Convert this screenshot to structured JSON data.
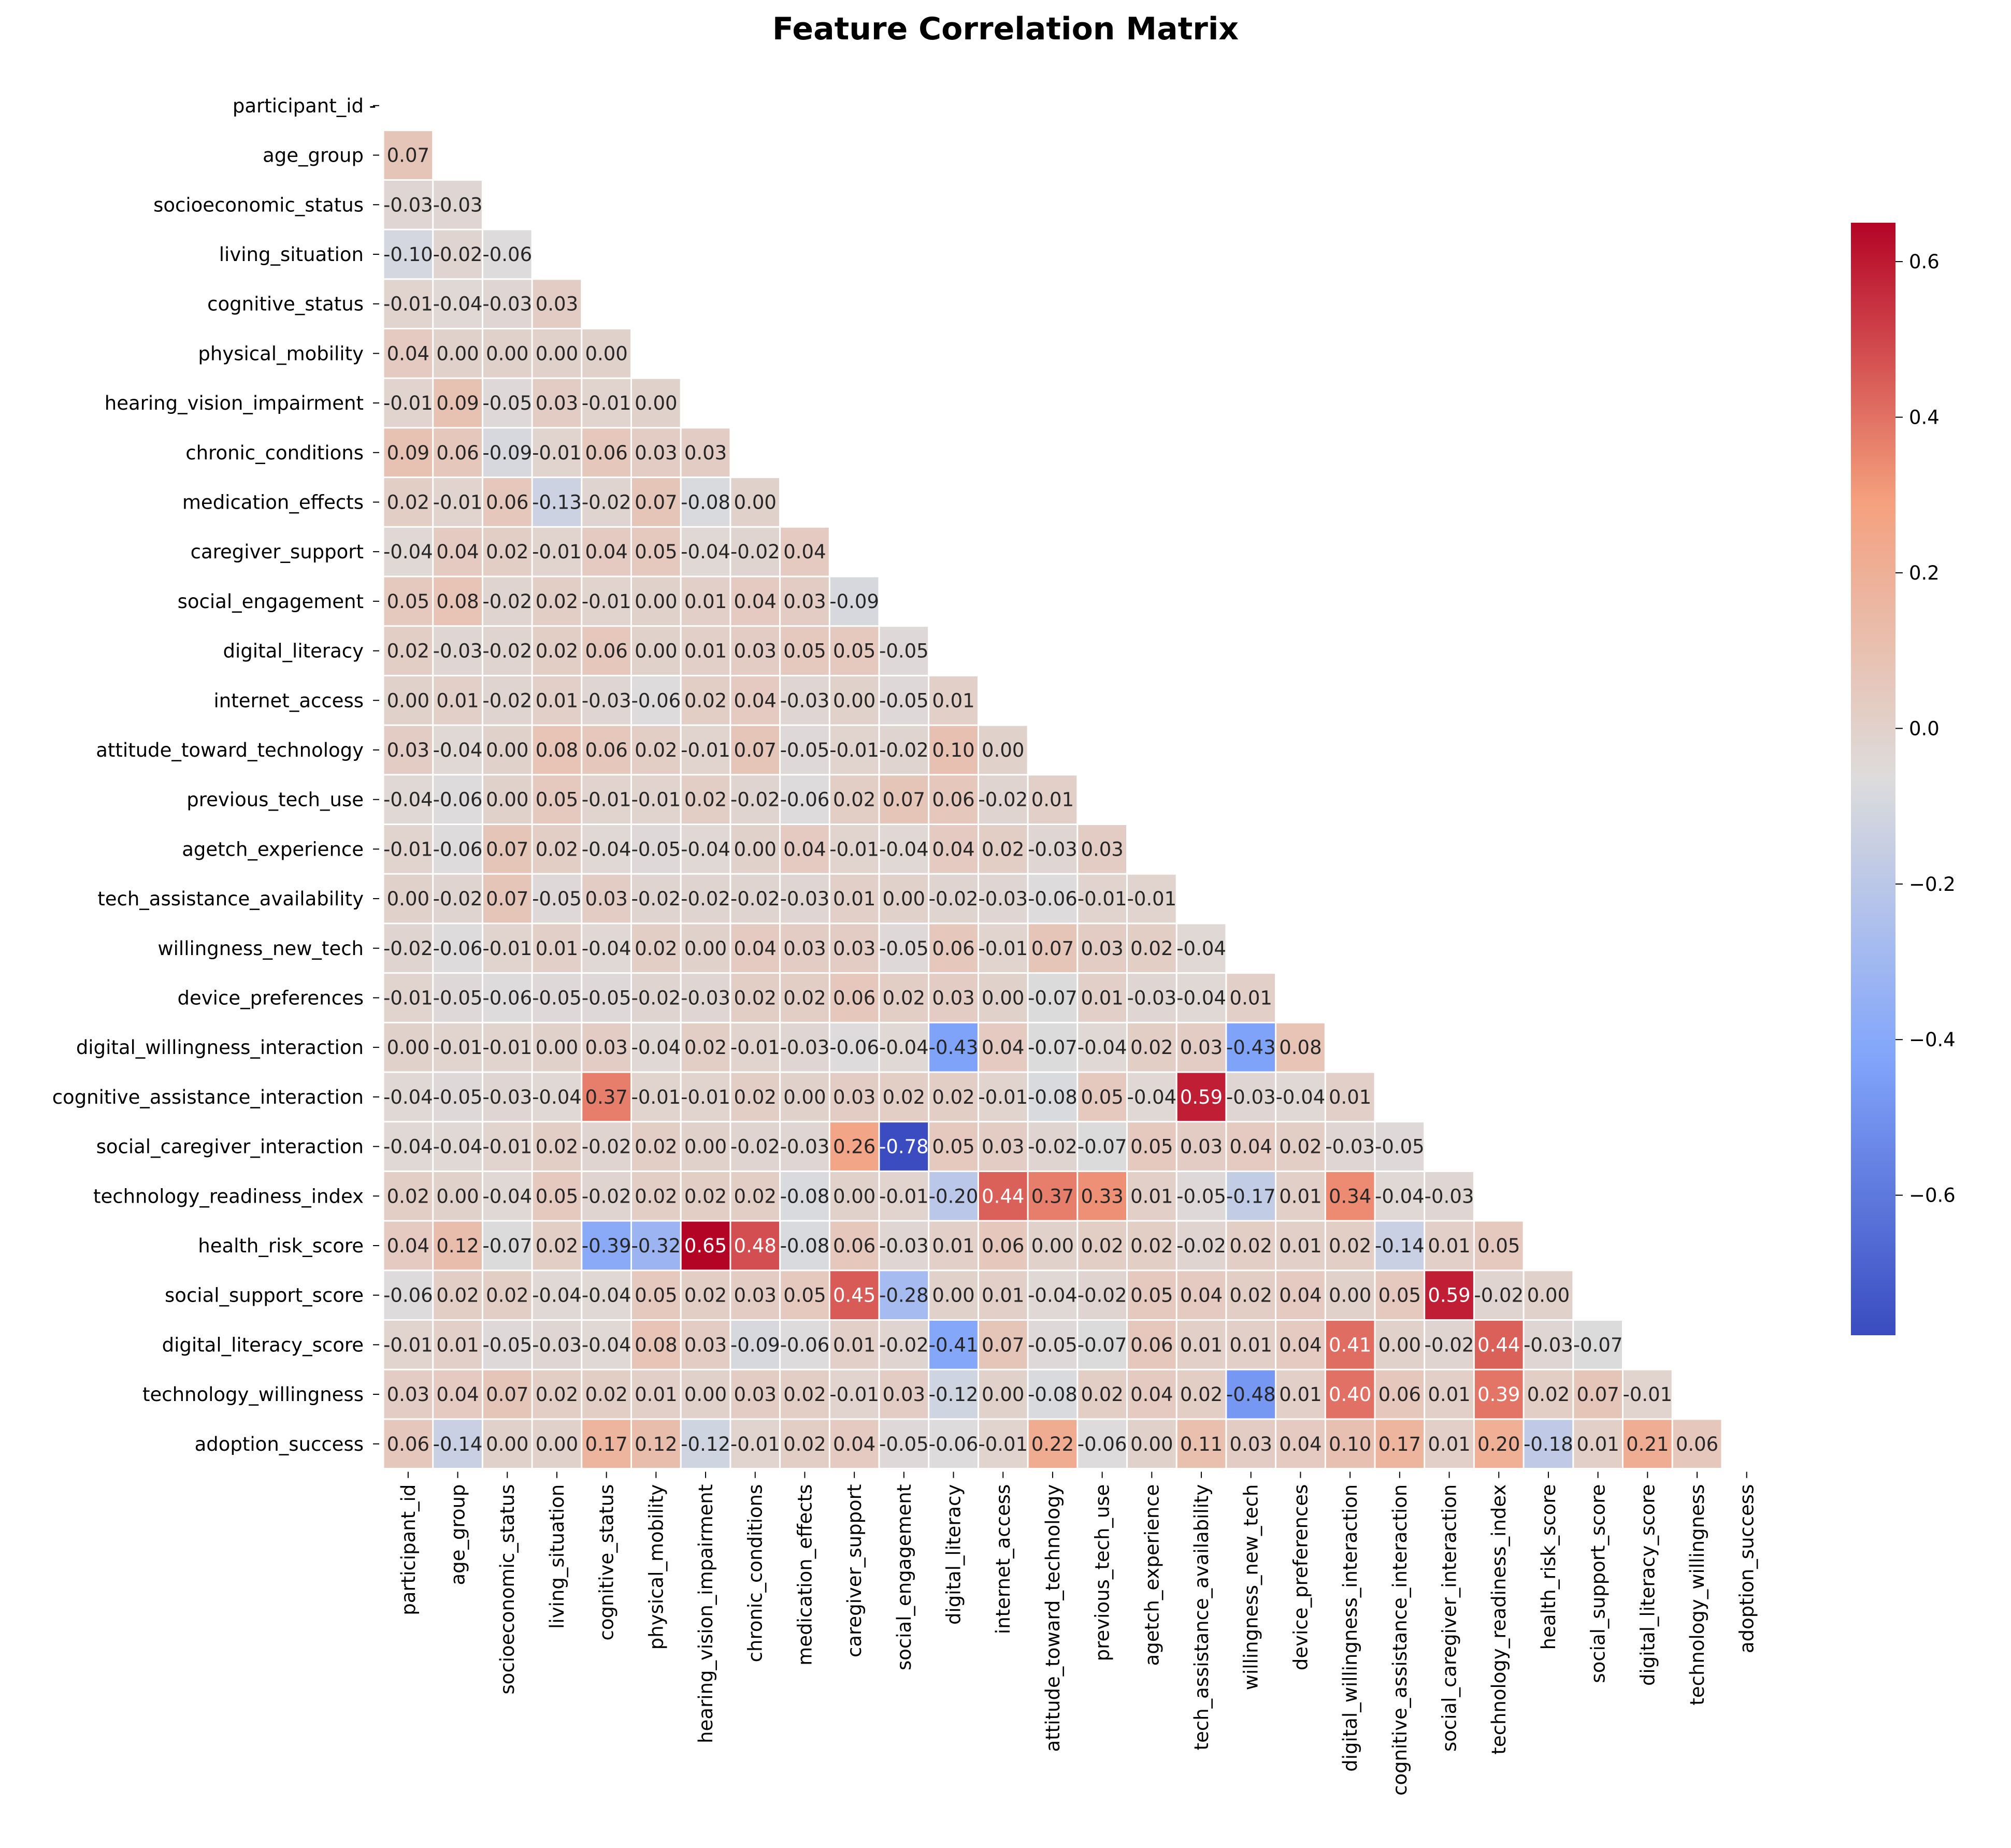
{
  "chart_data": {
    "type": "heatmap",
    "title": "Feature Correlation Matrix",
    "xlabel": "",
    "ylabel": "",
    "features": [
      "participant_id",
      "age_group",
      "socioeconomic_status",
      "living_situation",
      "cognitive_status",
      "physical_mobility",
      "hearing_vision_impairment",
      "chronic_conditions",
      "medication_effects",
      "caregiver_support",
      "social_engagement",
      "digital_literacy",
      "internet_access",
      "attitude_toward_technology",
      "previous_tech_use",
      "agetch_experience",
      "tech_assistance_availability",
      "willingness_new_tech",
      "device_preferences",
      "digital_willingness_interaction",
      "cognitive_assistance_interaction",
      "social_caregiver_interaction",
      "technology_readiness_index",
      "health_risk_score",
      "social_support_score",
      "digital_literacy_score",
      "technology_willingness",
      "adoption_success"
    ],
    "lower_triangle_values": [
      [],
      [
        0.07
      ],
      [
        -0.03,
        -0.03
      ],
      [
        -0.1,
        -0.02,
        -0.06
      ],
      [
        -0.01,
        -0.04,
        -0.03,
        0.03
      ],
      [
        0.04,
        -0.0,
        -0.0,
        0.0,
        0.0
      ],
      [
        -0.01,
        0.09,
        -0.05,
        0.03,
        -0.01,
        -0.0
      ],
      [
        0.09,
        0.06,
        -0.09,
        -0.01,
        0.06,
        0.03,
        0.03
      ],
      [
        0.02,
        -0.01,
        0.06,
        -0.13,
        -0.02,
        0.07,
        -0.08,
        0.0
      ],
      [
        -0.04,
        0.04,
        0.02,
        -0.01,
        0.04,
        0.05,
        -0.04,
        -0.02,
        0.04
      ],
      [
        0.05,
        0.08,
        -0.02,
        0.02,
        -0.01,
        0.0,
        0.01,
        0.04,
        0.03,
        -0.09
      ],
      [
        0.02,
        -0.03,
        -0.02,
        0.02,
        0.06,
        -0.0,
        0.01,
        0.03,
        0.05,
        0.05,
        -0.05
      ],
      [
        0.0,
        0.01,
        -0.02,
        0.01,
        -0.03,
        -0.06,
        0.02,
        0.04,
        -0.03,
        -0.0,
        -0.05,
        0.01
      ],
      [
        0.03,
        -0.04,
        -0.0,
        0.08,
        0.06,
        0.02,
        -0.01,
        0.07,
        -0.05,
        -0.01,
        -0.02,
        0.1,
        -0.0
      ],
      [
        -0.04,
        -0.06,
        -0.0,
        0.05,
        -0.01,
        -0.01,
        0.02,
        -0.02,
        -0.06,
        0.02,
        0.07,
        0.06,
        -0.02,
        0.01
      ],
      [
        -0.01,
        -0.06,
        0.07,
        0.02,
        -0.04,
        -0.05,
        -0.04,
        0.0,
        0.04,
        -0.01,
        -0.04,
        0.04,
        0.02,
        -0.03,
        0.03
      ],
      [
        0.0,
        -0.02,
        0.07,
        -0.05,
        0.03,
        -0.02,
        -0.02,
        -0.02,
        -0.03,
        0.01,
        0.0,
        -0.02,
        -0.03,
        -0.06,
        -0.01,
        -0.01
      ],
      [
        -0.02,
        -0.06,
        -0.01,
        0.01,
        -0.04,
        0.02,
        -0.0,
        0.04,
        0.03,
        0.03,
        -0.05,
        0.06,
        -0.01,
        0.07,
        0.03,
        0.02,
        -0.04
      ],
      [
        -0.01,
        -0.05,
        -0.06,
        -0.05,
        -0.05,
        -0.02,
        -0.03,
        0.02,
        0.02,
        0.06,
        0.02,
        0.03,
        -0.0,
        -0.07,
        0.01,
        -0.03,
        -0.04,
        0.01
      ],
      [
        0.0,
        -0.01,
        -0.01,
        -0.0,
        0.03,
        -0.04,
        0.02,
        -0.01,
        -0.03,
        -0.06,
        -0.04,
        -0.43,
        0.04,
        -0.07,
        -0.04,
        0.02,
        0.03,
        -0.43,
        0.08
      ],
      [
        -0.04,
        -0.05,
        -0.03,
        -0.04,
        0.37,
        -0.01,
        -0.01,
        0.02,
        0.0,
        0.03,
        0.02,
        0.02,
        -0.01,
        -0.08,
        0.05,
        -0.04,
        0.59,
        -0.03,
        -0.04,
        0.01
      ],
      [
        -0.04,
        -0.04,
        -0.01,
        0.02,
        -0.02,
        0.02,
        -0.0,
        -0.02,
        -0.03,
        0.26,
        -0.78,
        0.05,
        0.03,
        -0.02,
        -0.07,
        0.05,
        0.03,
        0.04,
        0.02,
        -0.03,
        -0.05
      ],
      [
        0.02,
        -0.0,
        -0.04,
        0.05,
        -0.02,
        0.02,
        0.02,
        0.02,
        -0.08,
        0.0,
        -0.01,
        -0.2,
        0.44,
        0.37,
        0.33,
        0.01,
        -0.05,
        -0.17,
        0.01,
        0.34,
        -0.04,
        -0.03
      ],
      [
        0.04,
        0.12,
        -0.07,
        0.02,
        -0.39,
        -0.32,
        0.65,
        0.48,
        -0.08,
        0.06,
        -0.03,
        0.01,
        0.06,
        0.0,
        0.02,
        0.02,
        -0.02,
        0.02,
        0.01,
        0.02,
        -0.14,
        0.01,
        0.05
      ],
      [
        -0.06,
        0.02,
        0.02,
        -0.04,
        -0.04,
        0.05,
        0.02,
        0.03,
        0.05,
        0.45,
        -0.28,
        -0.0,
        0.01,
        -0.04,
        -0.02,
        0.05,
        0.04,
        0.02,
        0.04,
        -0.0,
        0.05,
        0.59,
        -0.02,
        0.0
      ],
      [
        -0.01,
        0.01,
        -0.05,
        -0.03,
        -0.04,
        0.08,
        0.03,
        -0.09,
        -0.06,
        0.01,
        -0.02,
        -0.41,
        0.07,
        -0.05,
        -0.07,
        0.06,
        0.01,
        0.01,
        0.04,
        0.41,
        0.0,
        -0.02,
        0.44,
        -0.03,
        -0.07
      ],
      [
        0.03,
        0.04,
        0.07,
        0.02,
        0.02,
        0.01,
        0.0,
        0.03,
        0.02,
        -0.01,
        0.03,
        -0.12,
        0.0,
        -0.08,
        0.02,
        0.04,
        0.02,
        -0.48,
        0.01,
        0.4,
        0.06,
        0.01,
        0.39,
        0.02,
        0.07,
        -0.01
      ],
      [
        0.06,
        -0.14,
        -0.0,
        -0.0,
        0.17,
        0.12,
        -0.12,
        -0.01,
        0.02,
        0.04,
        -0.05,
        -0.06,
        -0.01,
        0.22,
        -0.06,
        0.0,
        0.11,
        0.03,
        0.04,
        0.1,
        0.17,
        0.01,
        0.2,
        -0.18,
        0.01,
        0.21,
        0.06
      ]
    ],
    "colormap": "coolwarm",
    "value_range": [
      -0.78,
      0.65
    ],
    "colorbar_ticks": [
      "0.6",
      "0.4",
      "0.2",
      "0.0",
      "−0.2",
      "−0.4",
      "−0.6"
    ],
    "colorbar_tick_values": [
      0.6,
      0.4,
      0.2,
      0.0,
      -0.2,
      -0.4,
      -0.6
    ],
    "diagonal_label": "-",
    "grid": false,
    "legend": "right-colorbar"
  }
}
